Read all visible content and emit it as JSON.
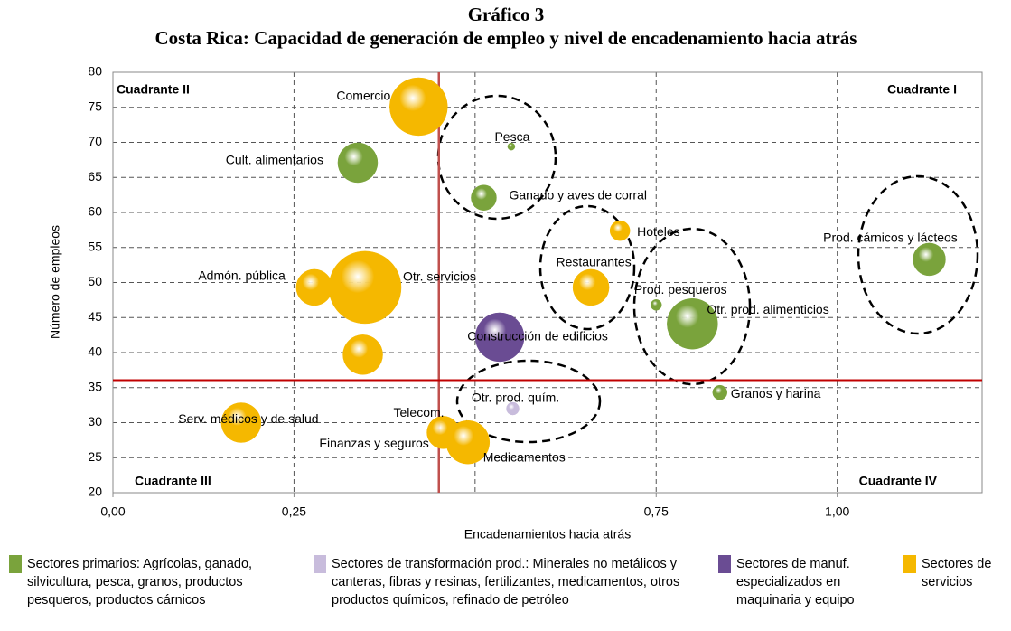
{
  "chart_data": {
    "type": "bubble",
    "title": "Gráfico 3",
    "subtitle": "Costa Rica: Capacidad de generación de empleo y nivel de encadenamiento hacia atrás",
    "x_label": "Encadenamientos hacia atrás",
    "y_label": "Número de empleos",
    "xlim": [
      0,
      1.2
    ],
    "ylim": [
      20,
      80
    ],
    "xticks": [
      {
        "value": 0,
        "label": "0,00"
      },
      {
        "value": 0.25,
        "label": "0,25"
      },
      {
        "value": 0.75,
        "label": "0,75"
      },
      {
        "value": 1.0,
        "label": "1,00"
      }
    ],
    "xgrid": [
      0.25,
      0.5,
      0.75,
      1.0
    ],
    "yticks": [
      20,
      25,
      30,
      35,
      40,
      45,
      50,
      55,
      60,
      65,
      70,
      75,
      80
    ],
    "grid": true,
    "reference_lines": {
      "x": 0.45,
      "y": 36,
      "color": "#c0504d"
    },
    "quadrants": [
      "Cuadrante I",
      "Cuadrante II",
      "Cuadrante III",
      "Cuadrante IV"
    ],
    "series": [
      {
        "name": "Sectores primarios: Agrícolas, ganado, silvicultura, pesca, granos, productos pesqueros, productos cárnicos",
        "color": "#7aa33c",
        "x": [
          0.55,
          0.338,
          0.512,
          1.127,
          0.75,
          0.8,
          0.838
        ],
        "values": [
          69.4,
          67.1,
          62.1,
          53.3,
          46.8,
          44.1,
          34.3
        ],
        "sizes": [
          4,
          22,
          14,
          18,
          6,
          28,
          8
        ],
        "labels": [
          "Pesca",
          "Cult. alimentarios",
          "Ganado y aves de corral",
          "Prod. cárnicos y  lácteos",
          "Prod. pesqueros",
          "Otr. prod. alimenticios",
          "Granos y harina"
        ]
      },
      {
        "name": "Sectores de transformación prod.: Minerales no metálicos y canteras, fibras y resinas, fertilizantes, medicamentos, otros productos químicos, refinado de petróleo",
        "color": "#c8bcdc",
        "x": [
          0.552,
          0.493
        ],
        "values": [
          32,
          26.5
        ],
        "sizes": [
          7,
          5
        ],
        "labels": [
          "Otr. prod. quím.",
          "Medicamentos"
        ]
      },
      {
        "name": "Sectores de manuf. especializados en maquinaria y equipo",
        "color": "#6a4c93",
        "x": [
          0.534
        ],
        "values": [
          42.2
        ],
        "sizes": [
          27
        ],
        "labels": [
          "Construcción  de edificios"
        ]
      },
      {
        "name": "Sectores de servicios",
        "color": "#f5b800",
        "x": [
          0.422,
          0.7,
          0.66,
          0.278,
          0.348,
          0.345,
          0.177,
          0.456,
          0.49
        ],
        "values": [
          75.1,
          57.4,
          49.3,
          49.3,
          49.3,
          39.7,
          30,
          28.6,
          27.2
        ],
        "sizes": [
          32,
          11,
          20,
          20,
          40,
          22,
          22,
          18,
          24
        ],
        "labels": [
          "Comercio",
          "Hoteles",
          "Restaurantes",
          "Admón. pública",
          "Otr. servicios",
          null,
          "Serv. médicos y de salud",
          "Telecom.",
          "Finanzas y seguros"
        ]
      }
    ]
  }
}
